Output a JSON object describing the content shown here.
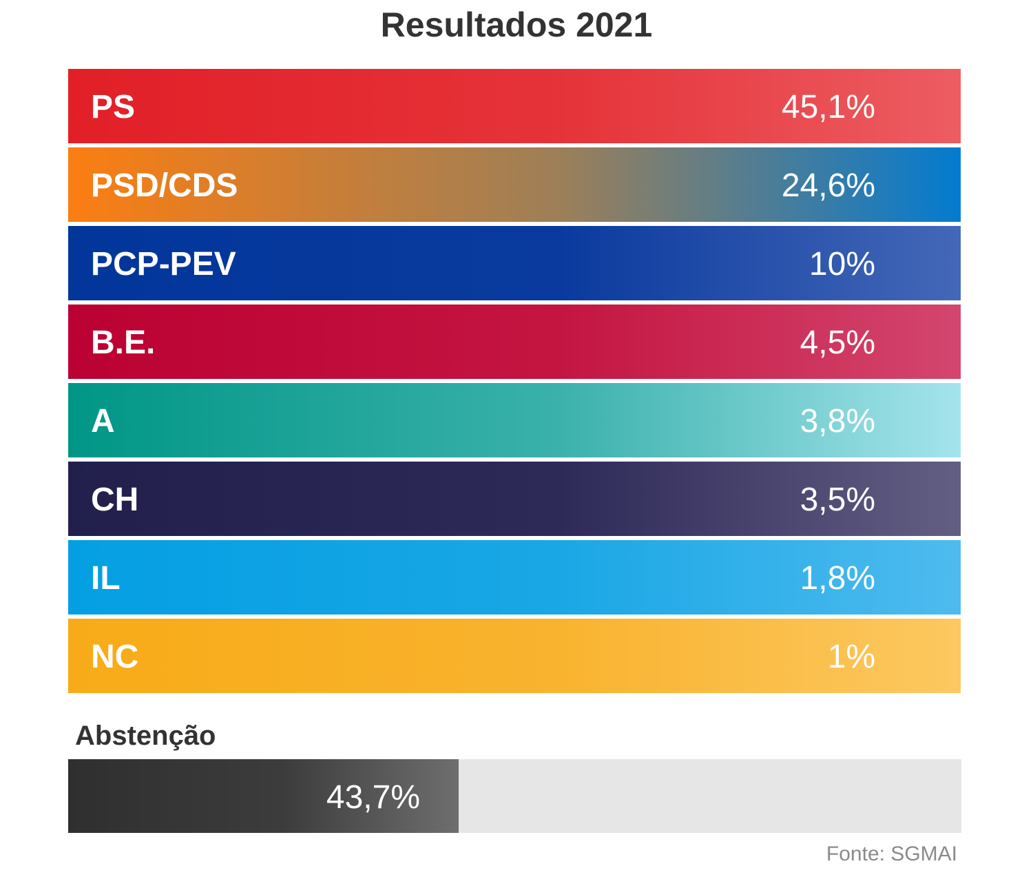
{
  "chart_data": {
    "type": "bar",
    "title": "Resultados 2021",
    "categories": [
      "PS",
      "PSD/CDS",
      "PCP-PEV",
      "B.E.",
      "A",
      "CH",
      "IL",
      "NC"
    ],
    "value_labels": [
      "45,1%",
      "24,6%",
      "10%",
      "4,5%",
      "3,8%",
      "3,5%",
      "1,8%",
      "1%"
    ],
    "values": [
      45.1,
      24.6,
      10,
      4.5,
      3.8,
      3.5,
      1.8,
      1
    ],
    "colors": [
      [
        "#e21f27",
        "#e53339",
        "#ec5d62"
      ],
      [
        "#fb7e12",
        "#9d7f58",
        "#037bd0"
      ],
      [
        "#02369a",
        "#0a3a9e",
        "#4468b8"
      ],
      [
        "#bb0133",
        "#c41541",
        "#d3466e"
      ],
      [
        "#009686",
        "#3bb1ac",
        "#a4e4ec"
      ],
      [
        "#221f4c",
        "#2e2a58",
        "#635e83"
      ],
      [
        "#049fe3",
        "#1aa7e5",
        "#4ebbee"
      ],
      [
        "#f8ab17",
        "#f9b32f",
        "#fcc860"
      ]
    ],
    "abstention": {
      "label": "Abstenção",
      "value": 43.7,
      "value_label": "43,7%"
    },
    "source": "Fonte: SGMAI"
  }
}
